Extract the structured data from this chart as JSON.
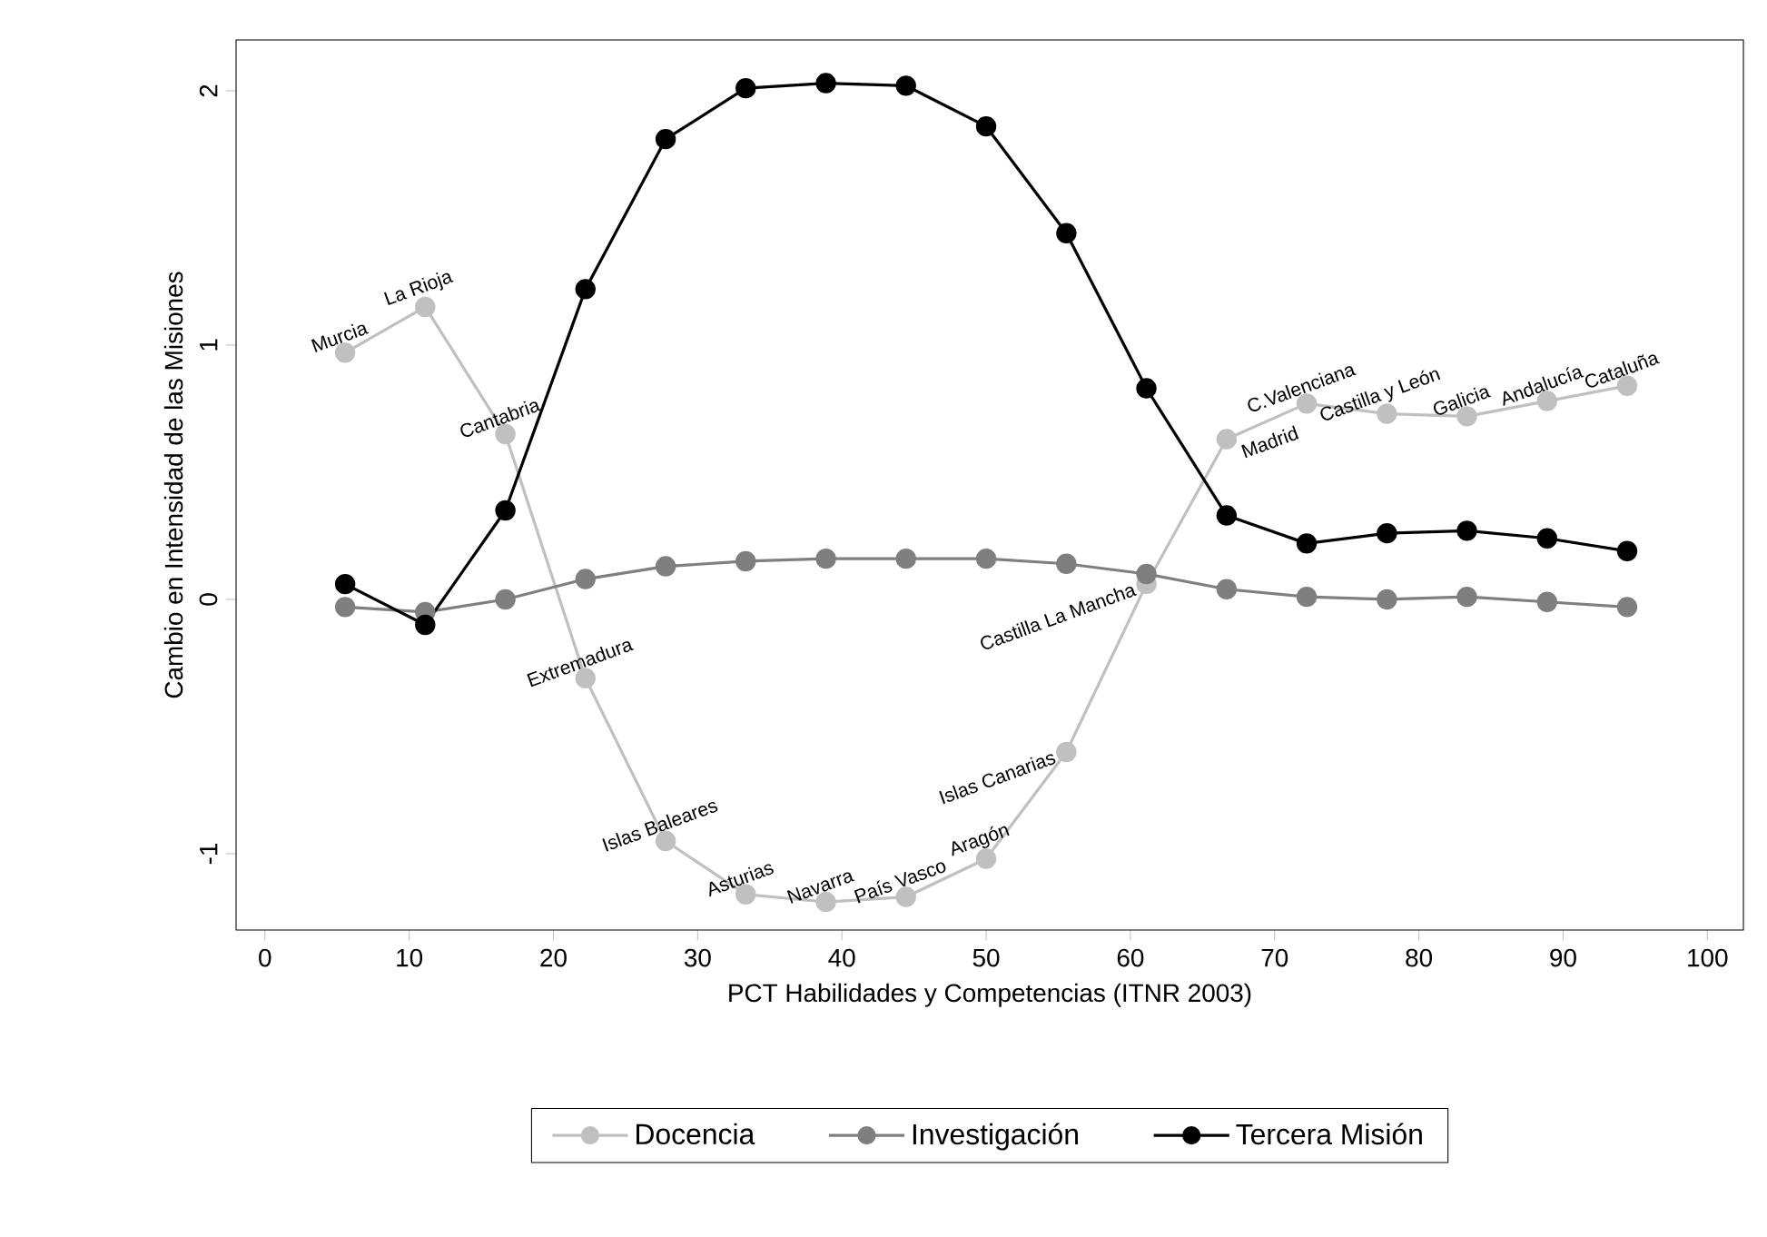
{
  "chart_data": {
    "type": "line",
    "xlabel": "PCT Habilidades y Competencias (ITNR 2003)",
    "ylabel": "Cambio en Intensidad de las Misiones",
    "x": [
      5.56,
      11.11,
      16.67,
      22.22,
      27.78,
      33.33,
      38.89,
      44.44,
      50,
      55.56,
      61.11,
      66.67,
      72.22,
      77.78,
      83.33,
      88.89,
      94.44
    ],
    "series": [
      {
        "name": "Docencia",
        "color": "#c0c0c0",
        "values": [
          0.97,
          1.15,
          0.65,
          -0.31,
          -0.95,
          -1.16,
          -1.19,
          -1.17,
          -1.02,
          -0.6,
          0.06,
          0.63,
          0.77,
          0.73,
          0.72,
          0.78,
          0.84
        ]
      },
      {
        "name": "Investigación",
        "color": "#7f7f7f",
        "values": [
          -0.03,
          -0.05,
          0.0,
          0.08,
          0.13,
          0.15,
          0.16,
          0.16,
          0.16,
          0.14,
          0.1,
          0.04,
          0.01,
          0.0,
          0.01,
          -0.01,
          -0.03
        ]
      },
      {
        "name": "Tercera Misión",
        "color": "#000000",
        "values": [
          0.06,
          -0.1,
          0.35,
          1.22,
          1.81,
          2.01,
          2.03,
          2.02,
          1.86,
          1.44,
          0.83,
          0.33,
          0.22,
          0.26,
          0.27,
          0.24,
          0.19
        ]
      }
    ],
    "xlim": [
      -2,
      102.5
    ],
    "ylim": [
      -1.3,
      2.2
    ],
    "xticks": [
      0,
      10,
      20,
      30,
      40,
      50,
      60,
      70,
      80,
      90,
      100
    ],
    "yticks": [
      -1,
      0,
      1,
      2
    ],
    "marker": "circle",
    "line_style": "solid",
    "legend": "bottom",
    "grid": false,
    "annotations": [
      {
        "text": "Murcia",
        "x": 5.56,
        "y": 0.97
      },
      {
        "text": "La Rioja",
        "x": 11.11,
        "y": 1.15
      },
      {
        "text": "Cantabria",
        "x": 16.67,
        "y": 0.65
      },
      {
        "text": "Extremadura",
        "x": 22.22,
        "y": -0.31
      },
      {
        "text": "Islas Baleares",
        "x": 27.78,
        "y": -0.95
      },
      {
        "text": "Asturias",
        "x": 33.33,
        "y": -1.16
      },
      {
        "text": "Navarra",
        "x": 38.89,
        "y": -1.19
      },
      {
        "text": "País Vasco",
        "x": 44.44,
        "y": -1.17
      },
      {
        "text": "Aragón",
        "x": 50,
        "y": -1.02
      },
      {
        "text": "Islas Canarias",
        "x": 55.56,
        "y": -0.6
      },
      {
        "text": "Castilla La Mancha",
        "x": 61.11,
        "y": 0.06
      },
      {
        "text": "Madrid",
        "x": 66.67,
        "y": 0.63
      },
      {
        "text": "C.Valenciana",
        "x": 72.22,
        "y": 0.77
      },
      {
        "text": "Castilla y León",
        "x": 77.78,
        "y": 0.73
      },
      {
        "text": "Galicia",
        "x": 83.33,
        "y": 0.72
      },
      {
        "text": "Andalucía",
        "x": 88.89,
        "y": 0.78
      },
      {
        "text": "Cataluña",
        "x": 94.44,
        "y": 0.84
      }
    ]
  }
}
